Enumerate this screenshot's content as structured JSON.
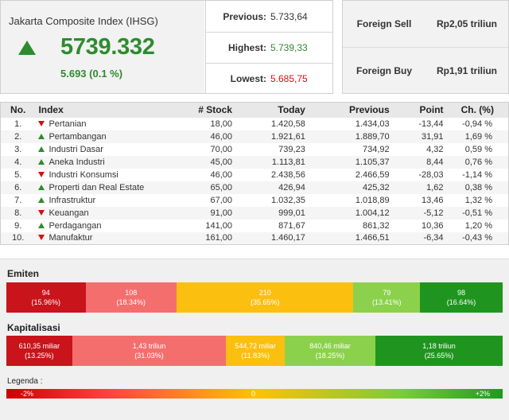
{
  "index": {
    "title": "Jakarta Composite Index (IHSG)",
    "value": "5739.332",
    "change": "5.693 (0.1 %)",
    "direction": "up",
    "up_color": "#2e8b2e"
  },
  "stats": [
    {
      "label": "Previous:",
      "value": "5.733,64",
      "color": "#333333"
    },
    {
      "label": "Highest:",
      "value": "5.739,33",
      "color": "#2e8b2e"
    },
    {
      "label": "Lowest:",
      "value": "5.685,75",
      "color": "#d01010"
    }
  ],
  "foreign": [
    {
      "label": "Foreign Sell",
      "value": "Rp2,05 triliun"
    },
    {
      "label": "Foreign Buy",
      "value": "Rp1,91 triliun"
    }
  ],
  "table": {
    "headers": [
      "No.",
      "Index",
      "# Stock",
      "Today",
      "Previous",
      "Point",
      "Ch. (%)"
    ],
    "rows": [
      {
        "no": "1.",
        "dir": "down",
        "index": "Pertanian",
        "stock": "18,00",
        "today": "1.420,58",
        "previous": "1.434,03",
        "point": "-13,44",
        "ch": "-0,94 %"
      },
      {
        "no": "2.",
        "dir": "up",
        "index": "Pertambangan",
        "stock": "46,00",
        "today": "1.921,61",
        "previous": "1.889,70",
        "point": "31,91",
        "ch": "1,69 %"
      },
      {
        "no": "3.",
        "dir": "up",
        "index": "Industri Dasar",
        "stock": "70,00",
        "today": "739,23",
        "previous": "734,92",
        "point": "4,32",
        "ch": "0,59 %"
      },
      {
        "no": "4.",
        "dir": "up",
        "index": "Aneka Industri",
        "stock": "45,00",
        "today": "1.113,81",
        "previous": "1.105,37",
        "point": "8,44",
        "ch": "0,76 %"
      },
      {
        "no": "5.",
        "dir": "down",
        "index": "Industri Konsumsi",
        "stock": "46,00",
        "today": "2.438,56",
        "previous": "2.466,59",
        "point": "-28,03",
        "ch": "-1,14 %"
      },
      {
        "no": "6.",
        "dir": "up",
        "index": "Properti dan Real Estate",
        "stock": "65,00",
        "today": "426,94",
        "previous": "425,32",
        "point": "1,62",
        "ch": "0,38 %"
      },
      {
        "no": "7.",
        "dir": "up",
        "index": "Infrastruktur",
        "stock": "67,00",
        "today": "1.032,35",
        "previous": "1.018,89",
        "point": "13,46",
        "ch": "1,32 %"
      },
      {
        "no": "8.",
        "dir": "down",
        "index": "Keuangan",
        "stock": "91,00",
        "today": "999,01",
        "previous": "1.004,12",
        "point": "-5,12",
        "ch": "-0,51 %"
      },
      {
        "no": "9.",
        "dir": "up",
        "index": "Perdagangan",
        "stock": "141,00",
        "today": "871,67",
        "previous": "861,32",
        "point": "10,36",
        "ch": "1,20 %"
      },
      {
        "no": "10.",
        "dir": "down",
        "index": "Manufaktur",
        "stock": "161,00",
        "today": "1.460,17",
        "previous": "1.466,51",
        "point": "-6,34",
        "ch": "-0,43 %"
      }
    ]
  },
  "emiten": {
    "title": "Emiten",
    "segments": [
      {
        "value": "94",
        "pct": "(15.96%)",
        "share": 15.96,
        "color": "#c8141a"
      },
      {
        "value": "108",
        "pct": "(18.34%)",
        "share": 18.34,
        "color": "#f56e6e"
      },
      {
        "value": "210",
        "pct": "(35.65%)",
        "share": 35.65,
        "color": "#fbbf10"
      },
      {
        "value": "79",
        "pct": "(13.41%)",
        "share": 13.41,
        "color": "#8cd14c"
      },
      {
        "value": "98",
        "pct": "(16.64%)",
        "share": 16.64,
        "color": "#1f951f"
      }
    ]
  },
  "kapitalisasi": {
    "title": "Kapitalisasi",
    "segments": [
      {
        "value": "610,35 miliar",
        "pct": "(13.25%)",
        "share": 13.25,
        "color": "#c8141a"
      },
      {
        "value": "1,43 triliun",
        "pct": "(31.03%)",
        "share": 31.03,
        "color": "#f56e6e"
      },
      {
        "value": "544,72 miliar",
        "pct": "(11.83%)",
        "share": 11.83,
        "color": "#fbbf10"
      },
      {
        "value": "840,46 miliar",
        "pct": "(18.25%)",
        "share": 18.25,
        "color": "#8cd14c"
      },
      {
        "value": "1,18 triliun",
        "pct": "(25.65%)",
        "share": 25.65,
        "color": "#1f951f"
      }
    ]
  },
  "legend": {
    "label": "Legenda :",
    "min": "-2%",
    "mid": "0",
    "max": "+2%"
  }
}
